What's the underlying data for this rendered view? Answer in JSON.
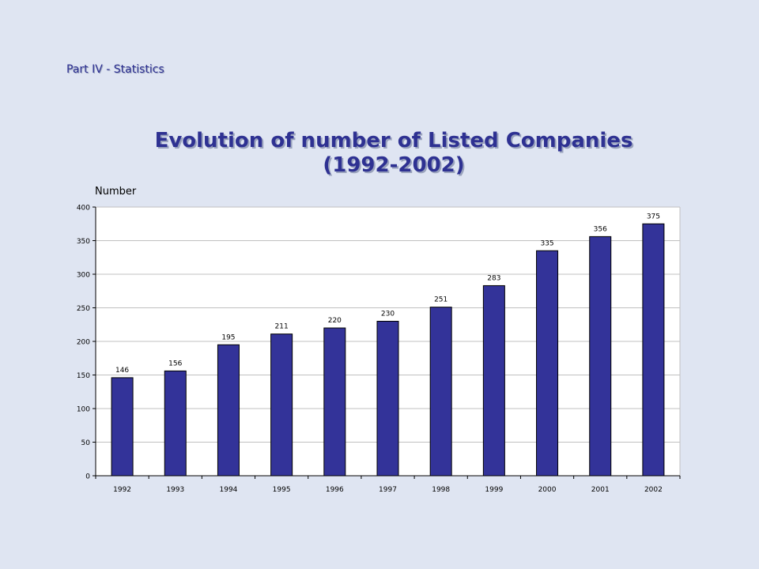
{
  "header": {
    "section": "Part IV - Statistics"
  },
  "chart_data": {
    "type": "bar",
    "title": [
      "Evolution of number of Listed Companies",
      "(1992-2002)"
    ],
    "ylabel": "Number",
    "xlabel": "",
    "categories": [
      "1992",
      "1993",
      "1994",
      "1995",
      "1996",
      "1997",
      "1998",
      "1999",
      "2000",
      "2001",
      "2002"
    ],
    "values": [
      146,
      156,
      195,
      211,
      220,
      230,
      251,
      283,
      335,
      356,
      375
    ],
    "data_labels": [
      "146",
      "156",
      "195",
      "211",
      "220",
      "230",
      "251",
      "283",
      "335",
      "356",
      "375"
    ],
    "ylim": [
      0,
      400
    ],
    "yticks": [
      0,
      50,
      100,
      150,
      200,
      250,
      300,
      350,
      400
    ],
    "grid": true,
    "colors": {
      "bar": "#333399",
      "grid": "#c0c0c0",
      "plot_bg": "#ffffff"
    }
  }
}
